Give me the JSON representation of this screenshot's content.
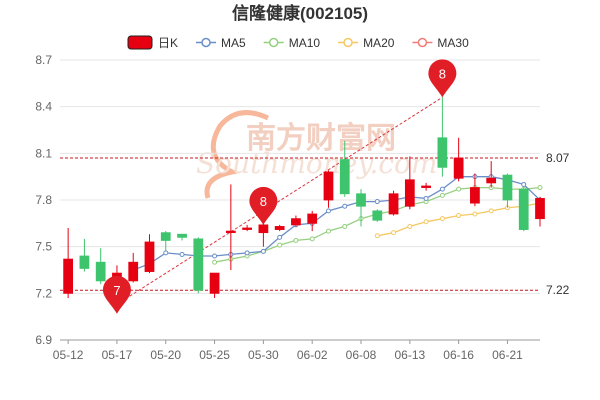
{
  "chart_data": {
    "type": "candlestick",
    "title": "信隆健康(002105)",
    "legend": [
      {
        "name": "日K",
        "color": "#e60012"
      },
      {
        "name": "MA5",
        "color": "#6b8ec9"
      },
      {
        "name": "MA10",
        "color": "#95d07f"
      },
      {
        "name": "MA20",
        "color": "#f5c863"
      },
      {
        "name": "MA30",
        "color": "#f07c7c"
      }
    ],
    "ylim": [
      6.9,
      8.7
    ],
    "yticks": [
      "6.9",
      "7.2",
      "7.5",
      "7.8",
      "8.1",
      "8.4",
      "8.7"
    ],
    "xticks": [
      {
        "label": "05-12",
        "index": 0
      },
      {
        "label": "05-17",
        "index": 3
      },
      {
        "label": "05-20",
        "index": 6
      },
      {
        "label": "05-25",
        "index": 9
      },
      {
        "label": "05-30",
        "index": 12
      },
      {
        "label": "06-02",
        "index": 15
      },
      {
        "label": "06-08",
        "index": 18
      },
      {
        "label": "06-13",
        "index": 21
      },
      {
        "label": "06-16",
        "index": 24
      },
      {
        "label": "06-21",
        "index": 27
      }
    ],
    "candles": [
      {
        "o": 7.2,
        "c": 7.42,
        "h": 7.62,
        "l": 7.17
      },
      {
        "o": 7.44,
        "c": 7.36,
        "h": 7.55,
        "l": 7.34
      },
      {
        "o": 7.4,
        "c": 7.28,
        "h": 7.49,
        "l": 7.26
      },
      {
        "o": 7.25,
        "c": 7.33,
        "h": 7.38,
        "l": 7.2
      },
      {
        "o": 7.28,
        "c": 7.4,
        "h": 7.46,
        "l": 7.27
      },
      {
        "o": 7.34,
        "c": 7.53,
        "h": 7.58,
        "l": 7.33
      },
      {
        "o": 7.59,
        "c": 7.54,
        "h": 7.6,
        "l": 7.47
      },
      {
        "o": 7.58,
        "c": 7.56,
        "h": 7.58,
        "l": 7.54
      },
      {
        "o": 7.55,
        "c": 7.22,
        "h": 7.56,
        "l": 7.2
      },
      {
        "o": 7.2,
        "c": 7.33,
        "h": 7.33,
        "l": 7.17
      },
      {
        "o": 7.6,
        "c": 7.6,
        "h": 7.9,
        "l": 7.35
      },
      {
        "o": 7.62,
        "c": 7.62,
        "h": 7.64,
        "l": 7.6
      },
      {
        "o": 7.59,
        "c": 7.64,
        "h": 7.66,
        "l": 7.5
      },
      {
        "o": 7.61,
        "c": 7.63,
        "h": 7.64,
        "l": 7.6
      },
      {
        "o": 7.64,
        "c": 7.68,
        "h": 7.7,
        "l": 7.63
      },
      {
        "o": 7.65,
        "c": 7.71,
        "h": 7.73,
        "l": 7.6
      },
      {
        "o": 7.8,
        "c": 7.98,
        "h": 7.99,
        "l": 7.75
      },
      {
        "o": 8.06,
        "c": 7.84,
        "h": 8.18,
        "l": 7.82
      },
      {
        "o": 7.84,
        "c": 7.76,
        "h": 7.87,
        "l": 7.63
      },
      {
        "o": 7.73,
        "c": 7.67,
        "h": 7.74,
        "l": 7.66
      },
      {
        "o": 7.71,
        "c": 7.84,
        "h": 7.86,
        "l": 7.7
      },
      {
        "o": 7.76,
        "c": 7.93,
        "h": 8.08,
        "l": 7.74
      },
      {
        "o": 7.88,
        "c": 7.89,
        "h": 7.91,
        "l": 7.86
      },
      {
        "o": 8.2,
        "c": 8.01,
        "h": 8.46,
        "l": 7.95
      },
      {
        "o": 7.94,
        "c": 8.07,
        "h": 8.2,
        "l": 7.92
      },
      {
        "o": 7.78,
        "c": 7.88,
        "h": 7.97,
        "l": 7.76
      },
      {
        "o": 7.91,
        "c": 7.94,
        "h": 8.05,
        "l": 7.88
      },
      {
        "o": 7.96,
        "c": 7.8,
        "h": 7.97,
        "l": 7.75
      },
      {
        "o": 7.87,
        "c": 7.61,
        "h": 7.88,
        "l": 7.6
      },
      {
        "o": 7.68,
        "c": 7.81,
        "h": 7.82,
        "l": 7.63
      }
    ],
    "ma5": [
      null,
      null,
      null,
      null,
      7.35,
      7.39,
      7.46,
      7.45,
      7.44,
      7.44,
      7.45,
      7.46,
      7.47,
      7.56,
      7.64,
      7.65,
      7.73,
      7.76,
      7.79,
      7.79,
      7.8,
      7.82,
      7.81,
      7.87,
      7.95,
      7.95,
      7.95,
      7.93,
      7.9,
      7.8
    ],
    "ma10": [
      null,
      null,
      null,
      null,
      null,
      null,
      null,
      null,
      null,
      7.4,
      7.42,
      7.44,
      7.47,
      7.51,
      7.54,
      7.55,
      7.6,
      7.63,
      7.68,
      7.71,
      7.73,
      7.77,
      7.79,
      7.83,
      7.87,
      7.88,
      7.88,
      7.87,
      7.87,
      7.88
    ],
    "ma20": [
      null,
      null,
      null,
      null,
      null,
      null,
      null,
      null,
      null,
      null,
      null,
      null,
      null,
      null,
      null,
      null,
      null,
      null,
      null,
      7.57,
      7.59,
      7.63,
      7.66,
      7.68,
      7.7,
      7.71,
      7.73,
      7.75,
      7.76,
      7.78
    ],
    "ref_lines": [
      {
        "label": "8.07",
        "value": 8.07
      },
      {
        "label": "7.22",
        "value": 7.22
      }
    ],
    "markers": [
      {
        "label": "7",
        "index": 3,
        "value": 7.21
      },
      {
        "label": "8",
        "index": 12,
        "value": 7.64
      },
      {
        "label": "8",
        "index": 23,
        "value": 8.46
      }
    ],
    "trend_line": {
      "from": {
        "index": 3,
        "value": 7.13
      },
      "to": {
        "index": 23,
        "value": 8.46
      }
    },
    "up_color": "#e60012",
    "down_color": "#3ec46d"
  }
}
